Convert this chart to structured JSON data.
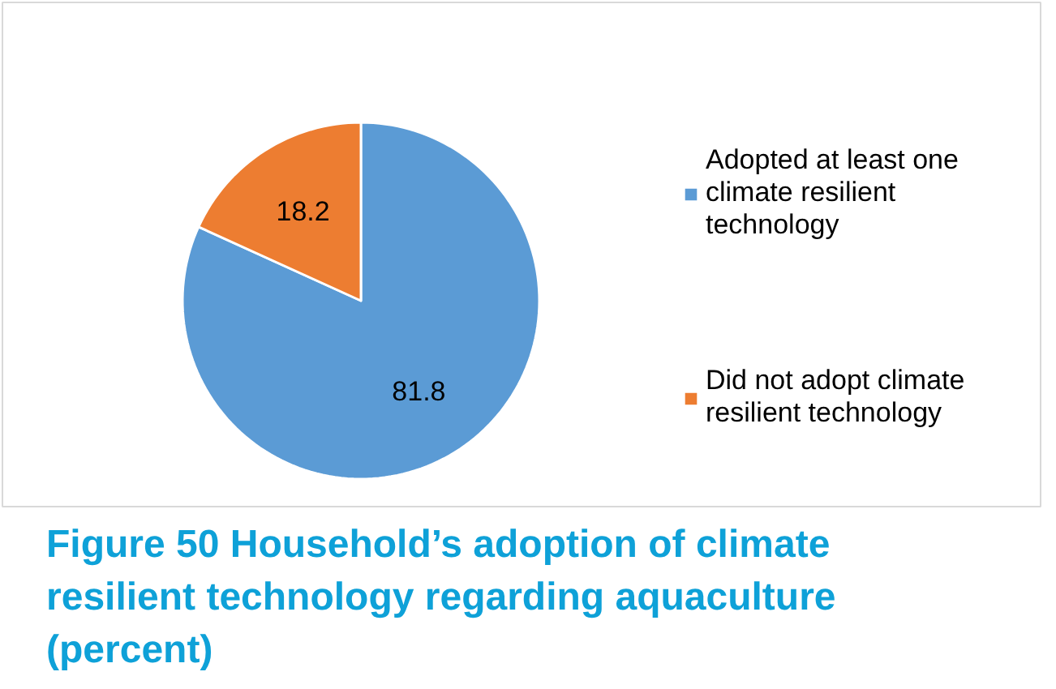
{
  "chart_data": {
    "type": "pie",
    "title": "Figure 50 Household’s adoption of climate resilient technology regarding aquaculture (percent)",
    "categories": [
      "Adopted at least one climate resilient technology",
      "Did not adopt climate resilient technology"
    ],
    "values": [
      81.8,
      18.2
    ],
    "colors": [
      "#5b9bd5",
      "#ed7d31"
    ],
    "data_labels": true,
    "legend": "right"
  }
}
